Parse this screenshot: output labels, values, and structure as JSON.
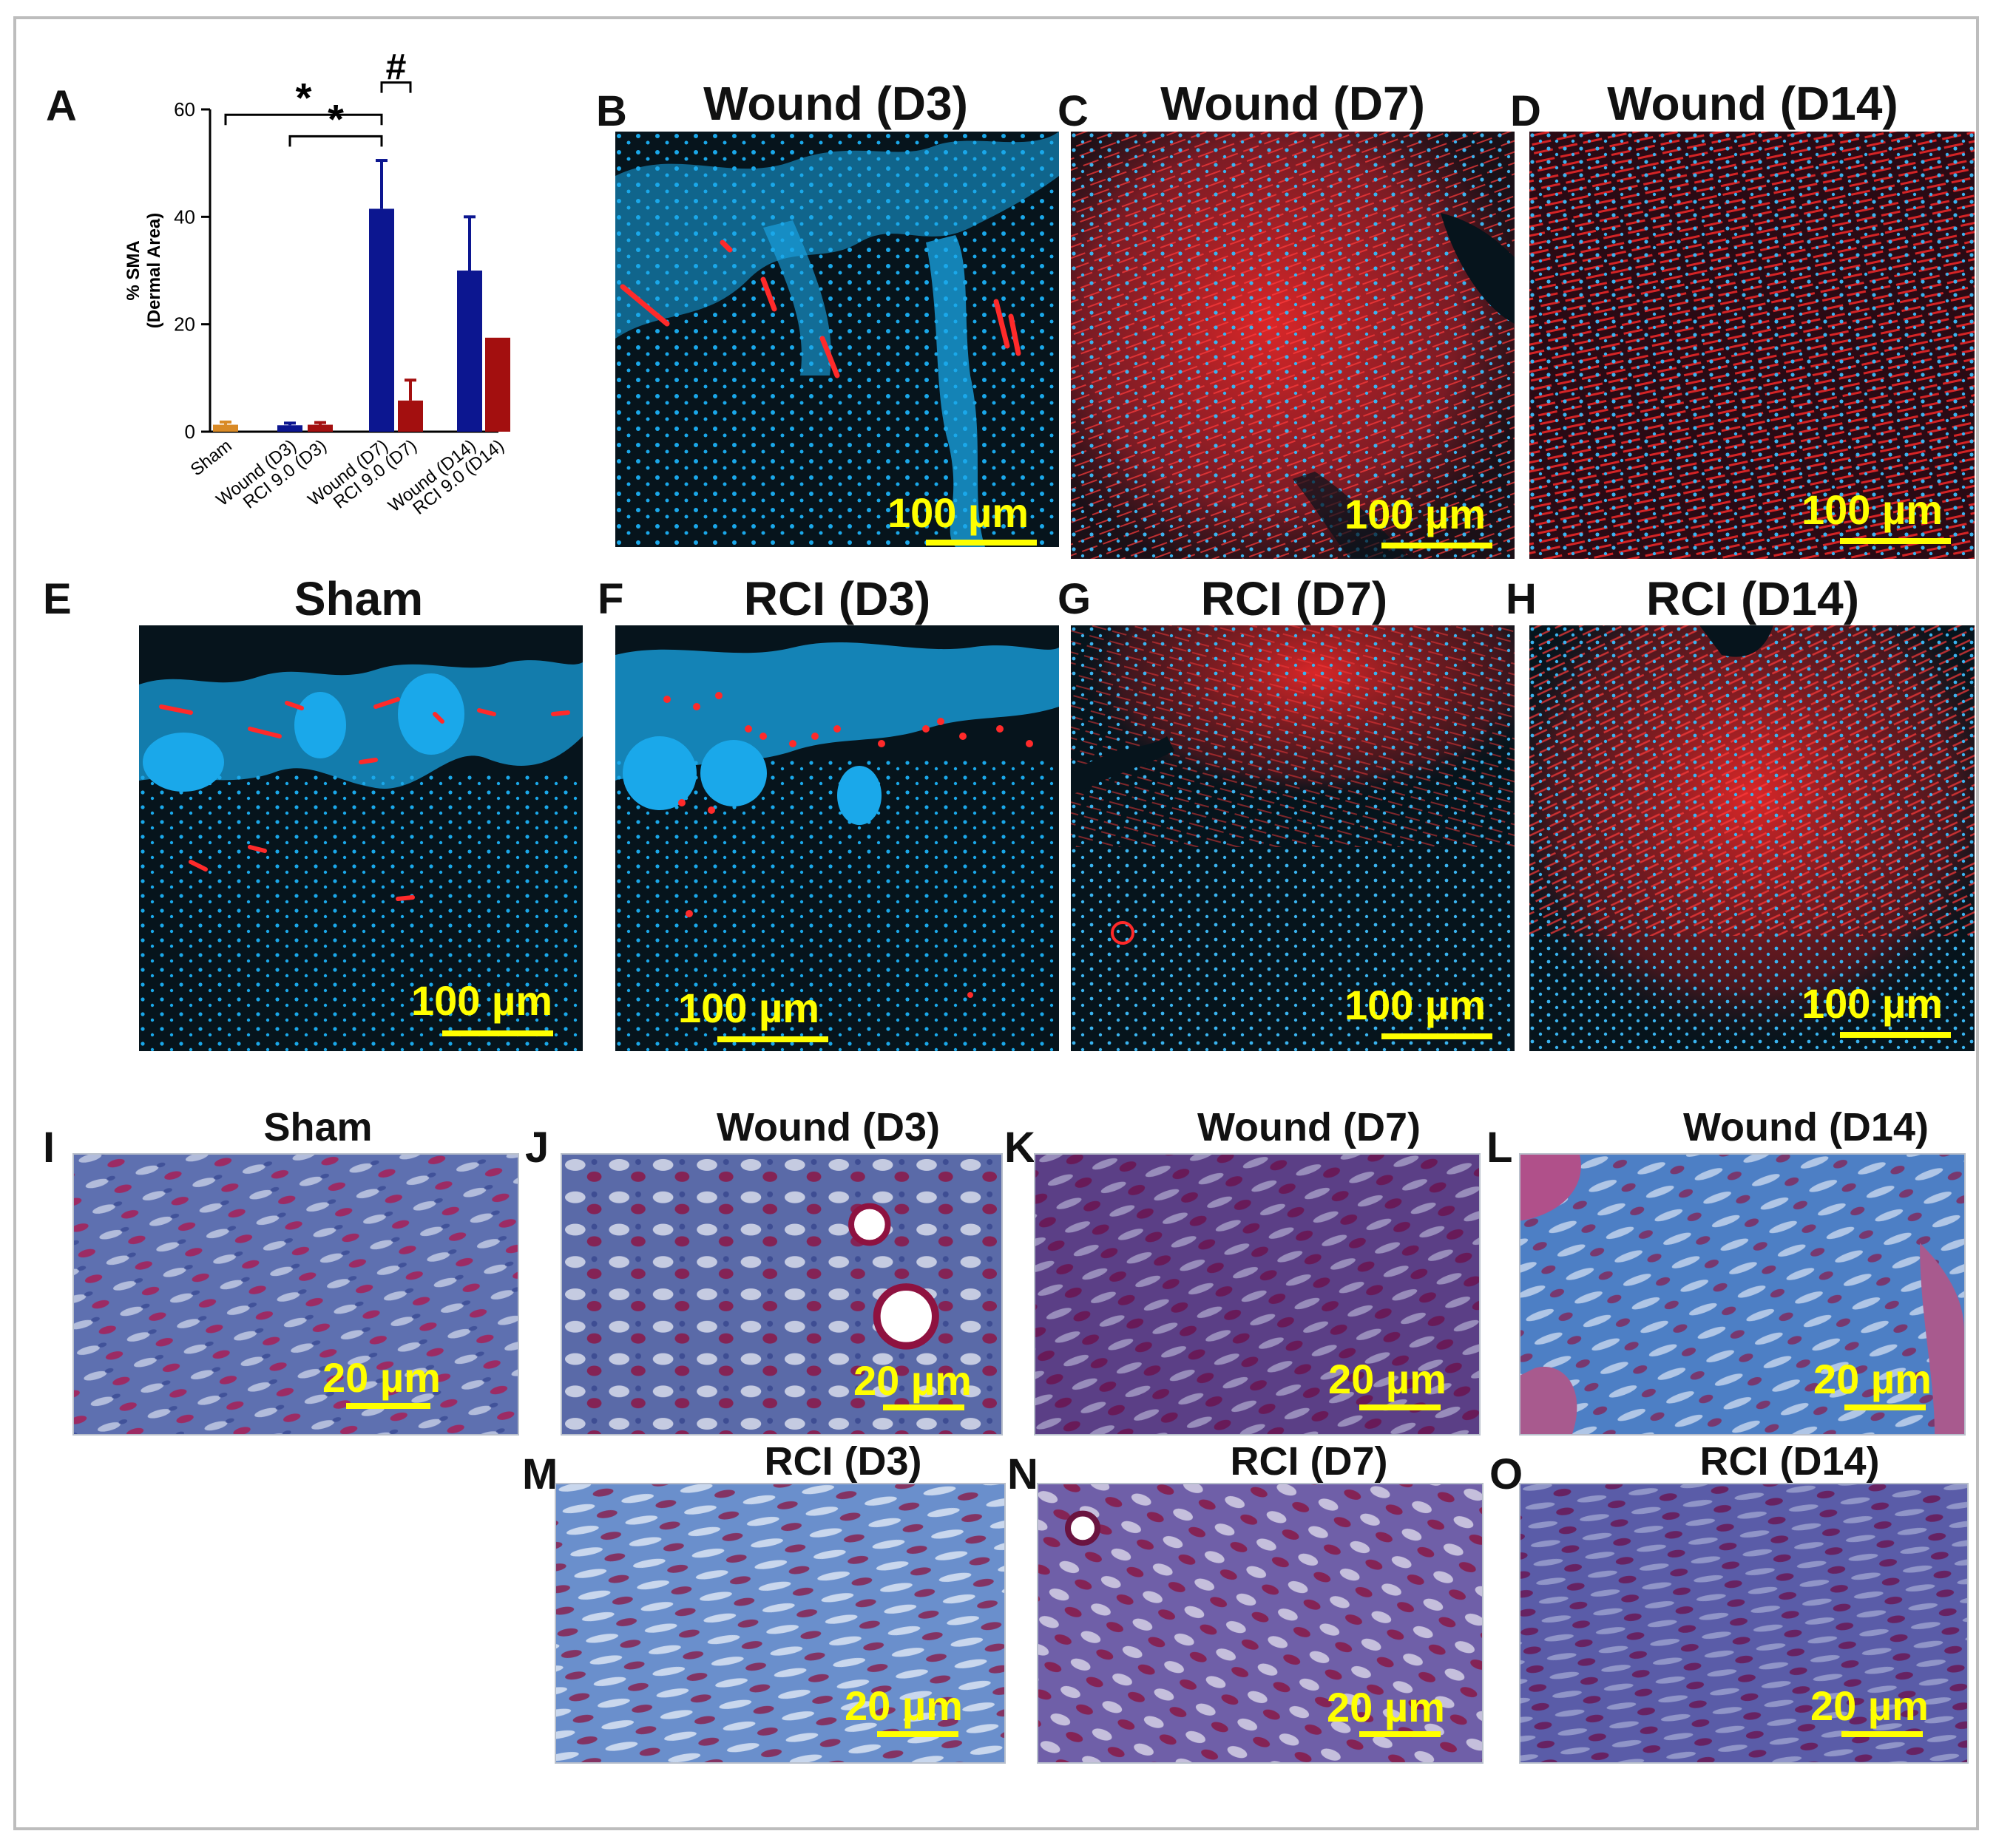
{
  "panels": {
    "A": {
      "label": "A"
    },
    "B": {
      "label": "B",
      "title": "Wound (D3)",
      "scale": "100 µm"
    },
    "C": {
      "label": "C",
      "title": "Wound (D7)",
      "scale": "100 µm"
    },
    "D": {
      "label": "D",
      "title": "Wound (D14)",
      "scale": "100 µm"
    },
    "E": {
      "label": "E",
      "title": "Sham",
      "scale": "100 µm"
    },
    "F": {
      "label": "F",
      "title": "RCI (D3)",
      "scale": "100 µm"
    },
    "G": {
      "label": "G",
      "title": "RCI (D7)",
      "scale": "100 µm"
    },
    "H": {
      "label": "H",
      "title": "RCI (D14)",
      "scale": "100 µm"
    },
    "I": {
      "label": "I",
      "title": "Sham",
      "scale": "20 µm"
    },
    "J": {
      "label": "J",
      "title": "Wound (D3)",
      "scale": "20 µm"
    },
    "K": {
      "label": "K",
      "title": "Wound (D7)",
      "scale": "20 µm"
    },
    "L": {
      "label": "L",
      "title": "Wound (D14)",
      "scale": "20 µm"
    },
    "M": {
      "label": "M",
      "title": "RCI (D3)",
      "scale": "20 µm"
    },
    "N": {
      "label": "N",
      "title": "RCI (D7)",
      "scale": "20 µm"
    },
    "O": {
      "label": "O",
      "title": "RCI (D14)",
      "scale": "20 µm"
    }
  },
  "colors": {
    "sham": "#d98a26",
    "wound": "#0c1690",
    "rci": "#a30f0f",
    "nuclei": "#1aa8ea",
    "sma": "#ff2a2a",
    "scale": "#ffff00"
  },
  "chart_data": {
    "type": "bar",
    "title": "",
    "ylabel_line1": "% SMA",
    "ylabel_line2": "(Dermal Area)",
    "ylim": [
      0,
      60
    ],
    "yticks": [
      "0",
      "20",
      "40",
      "60"
    ],
    "categories": [
      "Sham",
      "Wound (D3)",
      "RCI 9.0 (D3)",
      "Wound (D7)",
      "RCI 9.0 (D7)",
      "Wound (D14)",
      "RCI 9.0 (D14)"
    ],
    "values": [
      1.3,
      1.2,
      1.3,
      41.5,
      5.8,
      30.0,
      17.5
    ],
    "errors": [
      0.5,
      0.4,
      0.4,
      9.0,
      3.8,
      10.0,
      0.0
    ],
    "bar_groups": [
      "sham",
      "wound",
      "rci",
      "wound",
      "rci",
      "wound",
      "rci"
    ],
    "annotations": [
      {
        "text": "*",
        "from": 0,
        "to": 3,
        "level": 59
      },
      {
        "text": "*",
        "from": 1,
        "to": 3,
        "level": 55
      },
      {
        "text": "#",
        "from": 3,
        "to": 4,
        "level": 65
      }
    ]
  }
}
